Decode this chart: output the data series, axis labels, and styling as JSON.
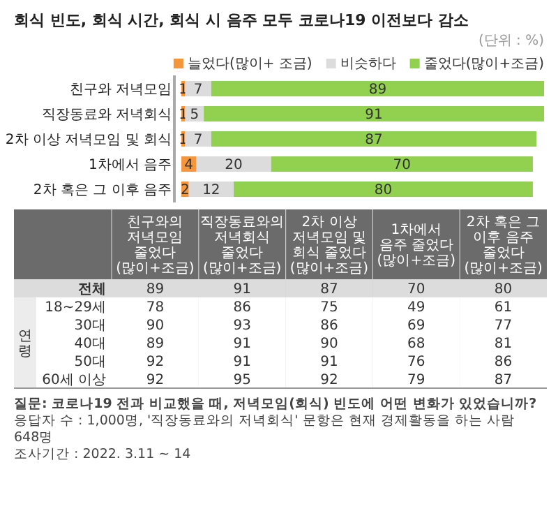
{
  "chart_data": [
    {
      "type": "bar",
      "orientation": "horizontal",
      "stacked": true,
      "data_labels": true,
      "legend": "top right",
      "title": "회식 빈도, 회식 시간, 회식 시 음주 모두 코로나19 이전보다 감소",
      "annotations": [
        "(단위 : %)"
      ],
      "categories": [
        "친구와 저녁모임",
        "직장동료와 저녁회식",
        "2차 이상 저녁모임 및 회식",
        "1차에서 음주",
        "2차 혹은 그 이후 음주"
      ],
      "series": [
        {
          "name": "늘었다(많이+ 조금)",
          "color": "#f4963c",
          "values": [
            1,
            1,
            1,
            4,
            2
          ]
        },
        {
          "name": "비슷하다",
          "color": "#dcdcdc",
          "values": [
            7,
            5,
            7,
            20,
            12
          ]
        },
        {
          "name": "줄었다(많이+조금)",
          "color": "#92d050",
          "values": [
            89,
            91,
            87,
            70,
            80
          ]
        }
      ]
    },
    {
      "type": "heatmap",
      "ylabel": "연령",
      "data_labels": true,
      "categories": [
        "친구와의 저녁모임 줄었다 (많이+조금)",
        "직장동료와의 저녁회식 줄었다 (많이+조금)",
        "2차 이상 저녁모임 및 회식 줄었다 (많이+조금)",
        "1차에서 음주 줄었다(많이+조금)",
        "2차 혹은 그 이후 음주 줄었다 (많이+조금)"
      ],
      "y_categories": [
        "전체",
        "18~29세",
        "30대",
        "40대",
        "50대",
        "60세 이상"
      ],
      "cells": [
        [
          89,
          91,
          87,
          70,
          80
        ],
        [
          78,
          86,
          75,
          49,
          61
        ],
        [
          90,
          93,
          86,
          69,
          77
        ],
        [
          89,
          91,
          90,
          68,
          81
        ],
        [
          92,
          91,
          91,
          76,
          86
        ],
        [
          92,
          95,
          92,
          79,
          87
        ]
      ],
      "annotations": [
        "질문: 코로나19 전과 비교했을 때, 저녁모임(회식) 빈도에 어떤 변화가 있었습니까?",
        "응답자 수 : 1,000명, '직장동료와의 저녁회식' 문항은 현재 경제활동을 하는 사람 648명",
        "조사기간 : 2022. 3.11 ~ 14"
      ]
    }
  ]
}
